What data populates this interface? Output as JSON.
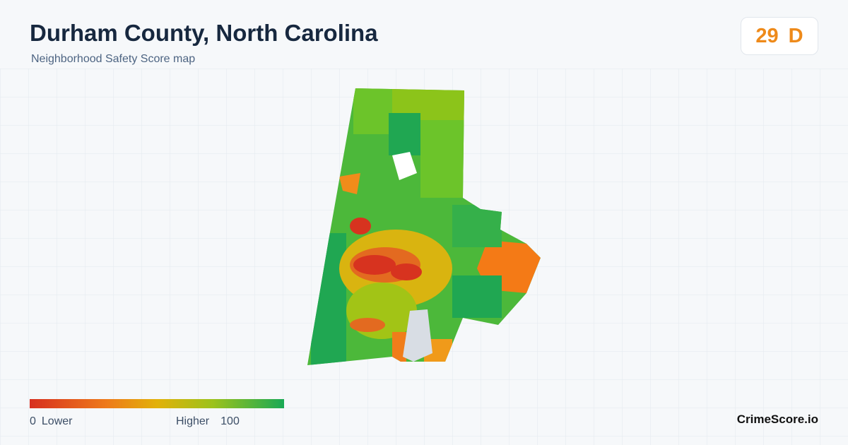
{
  "header": {
    "title": "Durham County, North Carolina",
    "subtitle": "Neighborhood Safety Score map"
  },
  "score": {
    "value": 29,
    "grade": "D"
  },
  "legend": {
    "min": 0,
    "min_label": "Lower",
    "max_label": "Higher",
    "max": 100
  },
  "brand": "CrimeScore.io"
}
